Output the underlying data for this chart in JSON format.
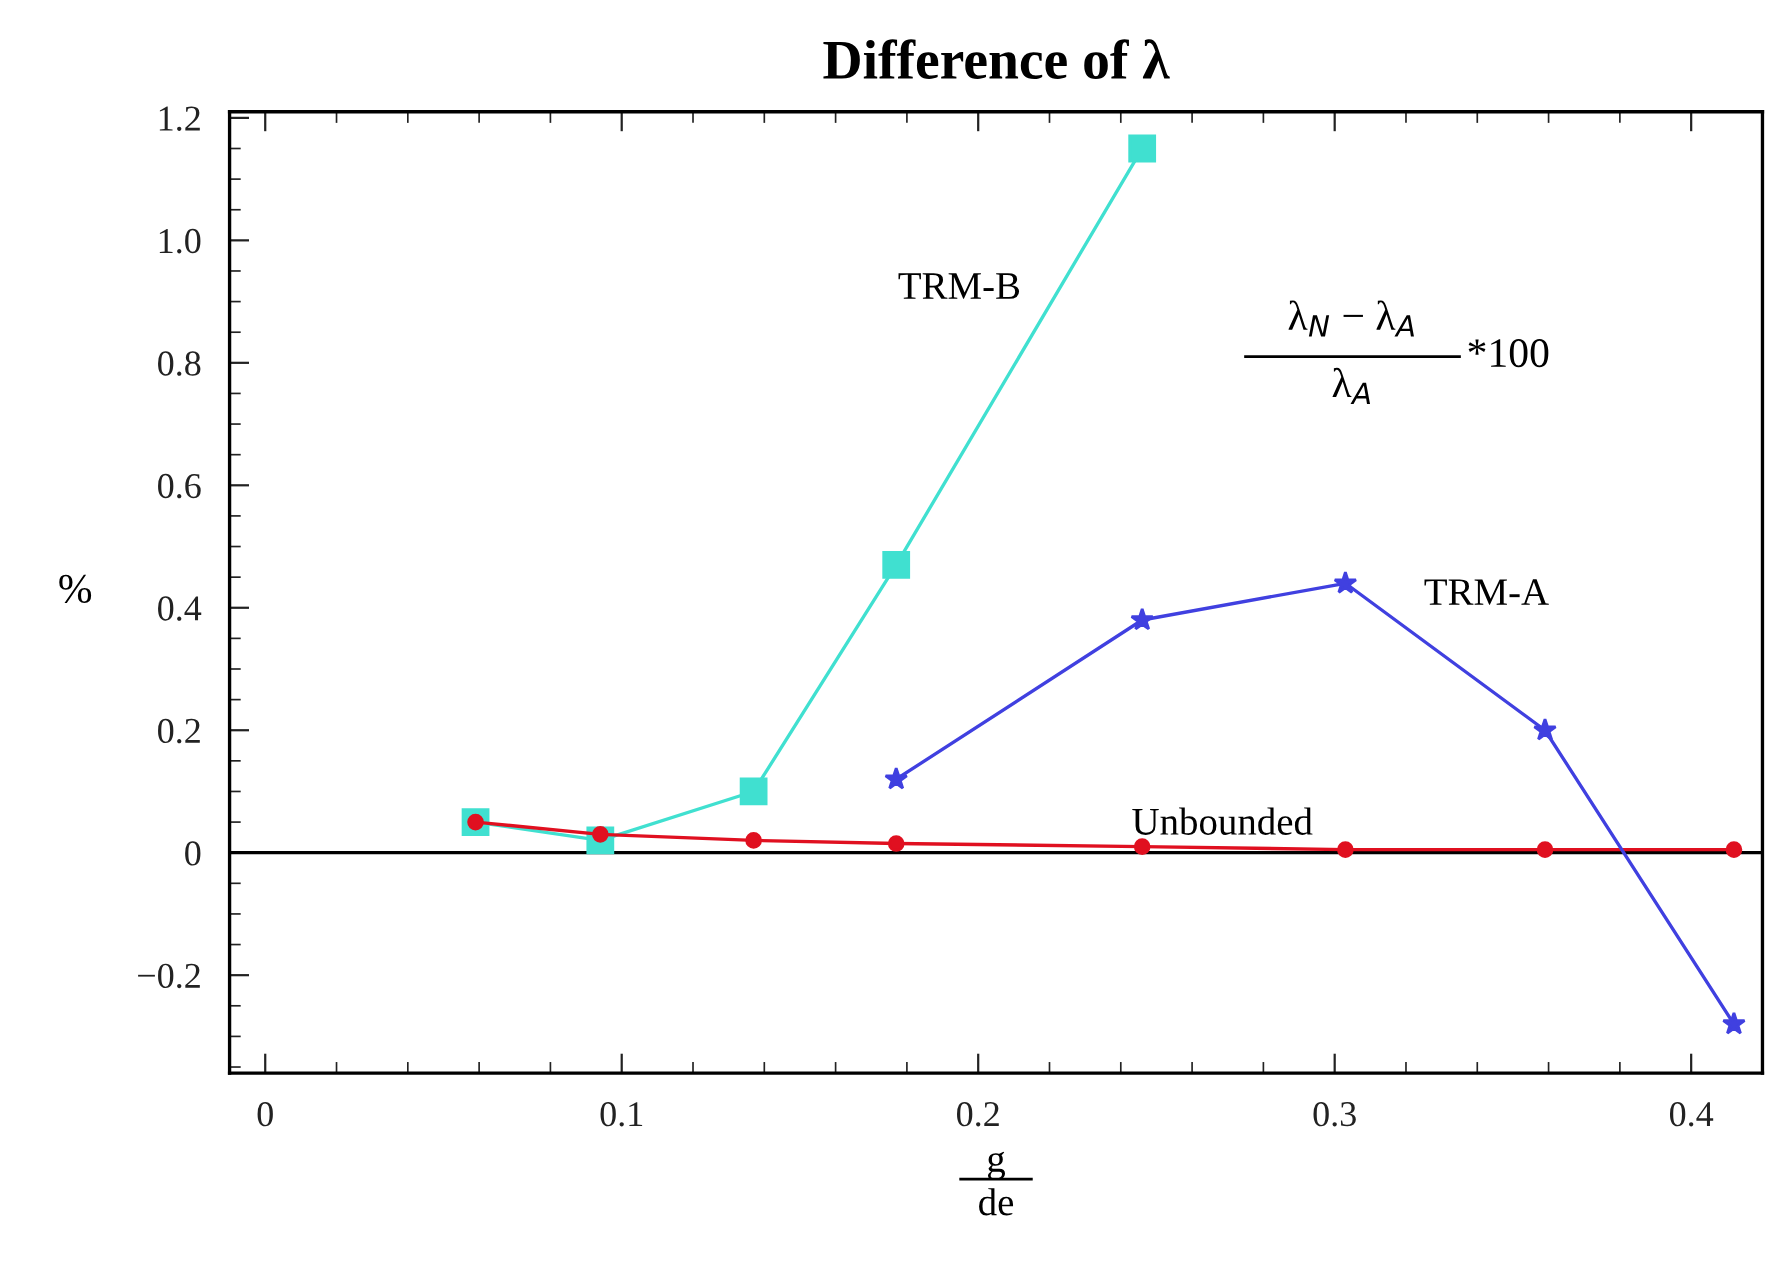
{
  "chart_data": {
    "type": "line",
    "title": "Difference of λ",
    "xlabel": "g\nde",
    "ylabel": "%",
    "xlim": [
      -0.01,
      0.42
    ],
    "ylim": [
      -0.36,
      1.21
    ],
    "xticks": [
      0,
      {
        "value": 0.02,
        "label": null
      },
      {
        "value": 0.04,
        "label": null
      },
      {
        "value": 0.06,
        "label": null
      },
      {
        "value": 0.08,
        "label": null
      },
      0.1,
      {
        "value": 0.12,
        "label": null
      },
      {
        "value": 0.14,
        "label": null
      },
      {
        "value": 0.16,
        "label": null
      },
      {
        "value": 0.18,
        "label": null
      },
      0.2,
      {
        "value": 0.22,
        "label": null
      },
      {
        "value": 0.24,
        "label": null
      },
      {
        "value": 0.26,
        "label": null
      },
      {
        "value": 0.28,
        "label": null
      },
      0.3,
      {
        "value": 0.32,
        "label": null
      },
      {
        "value": 0.34,
        "label": null
      },
      {
        "value": 0.36,
        "label": null
      },
      {
        "value": 0.38,
        "label": null
      },
      0.4
    ],
    "yticks": [
      {
        "value": -0.35,
        "label": null
      },
      {
        "value": -0.3,
        "label": null
      },
      {
        "value": -0.25,
        "label": null
      },
      {
        "value": -0.2,
        "label": "−0.2"
      },
      {
        "value": -0.15,
        "label": null
      },
      {
        "value": -0.1,
        "label": null
      },
      {
        "value": -0.05,
        "label": null
      },
      0,
      {
        "value": 0.05,
        "label": null
      },
      {
        "value": 0.1,
        "label": null
      },
      {
        "value": 0.15,
        "label": null
      },
      0.2,
      {
        "value": 0.25,
        "label": null
      },
      {
        "value": 0.3,
        "label": null
      },
      {
        "value": 0.35,
        "label": null
      },
      0.4,
      {
        "value": 0.45,
        "label": null
      },
      {
        "value": 0.5,
        "label": null
      },
      {
        "value": 0.55,
        "label": null
      },
      0.6,
      {
        "value": 0.65,
        "label": null
      },
      {
        "value": 0.7,
        "label": null
      },
      {
        "value": 0.75,
        "label": null
      },
      0.8,
      {
        "value": 0.85,
        "label": null
      },
      {
        "value": 0.9,
        "label": null
      },
      {
        "value": 0.95,
        "label": null
      },
      {
        "value": 1.0,
        "label": "1.0"
      },
      {
        "value": 1.05,
        "label": null
      },
      {
        "value": 1.1,
        "label": null
      },
      {
        "value": 1.15,
        "label": null
      },
      1.2
    ],
    "grid": false,
    "legend": false,
    "ref_lines": [
      {
        "axis": "y",
        "value": 0,
        "label": null,
        "color": "#000000",
        "line_style": "solid"
      }
    ],
    "series": [
      {
        "name": "TRM-B",
        "color": "#40e0d0",
        "marker": "square",
        "x": [
          0.059,
          0.094,
          0.137,
          0.177,
          0.246
        ],
        "values": [
          0.05,
          0.02,
          0.1,
          0.47,
          1.15
        ]
      },
      {
        "name": "Unbounded",
        "color": "#e01020",
        "marker": "circle",
        "x": [
          0.059,
          0.094,
          0.137,
          0.177,
          0.246,
          0.303,
          0.359,
          0.412
        ],
        "values": [
          0.05,
          0.03,
          0.02,
          0.015,
          0.01,
          0.005,
          0.005,
          0.005
        ]
      },
      {
        "name": "TRM-A",
        "color": "#4040e0",
        "marker": "star",
        "x": [
          0.177,
          0.246,
          0.303,
          0.359,
          0.412
        ],
        "values": [
          0.12,
          0.38,
          0.44,
          0.2,
          -0.28
        ]
      }
    ],
    "annotations": [
      "λ$_{N}$ − λ$_{A}$",
      "λ$_{A}$",
      "*100"
    ]
  }
}
